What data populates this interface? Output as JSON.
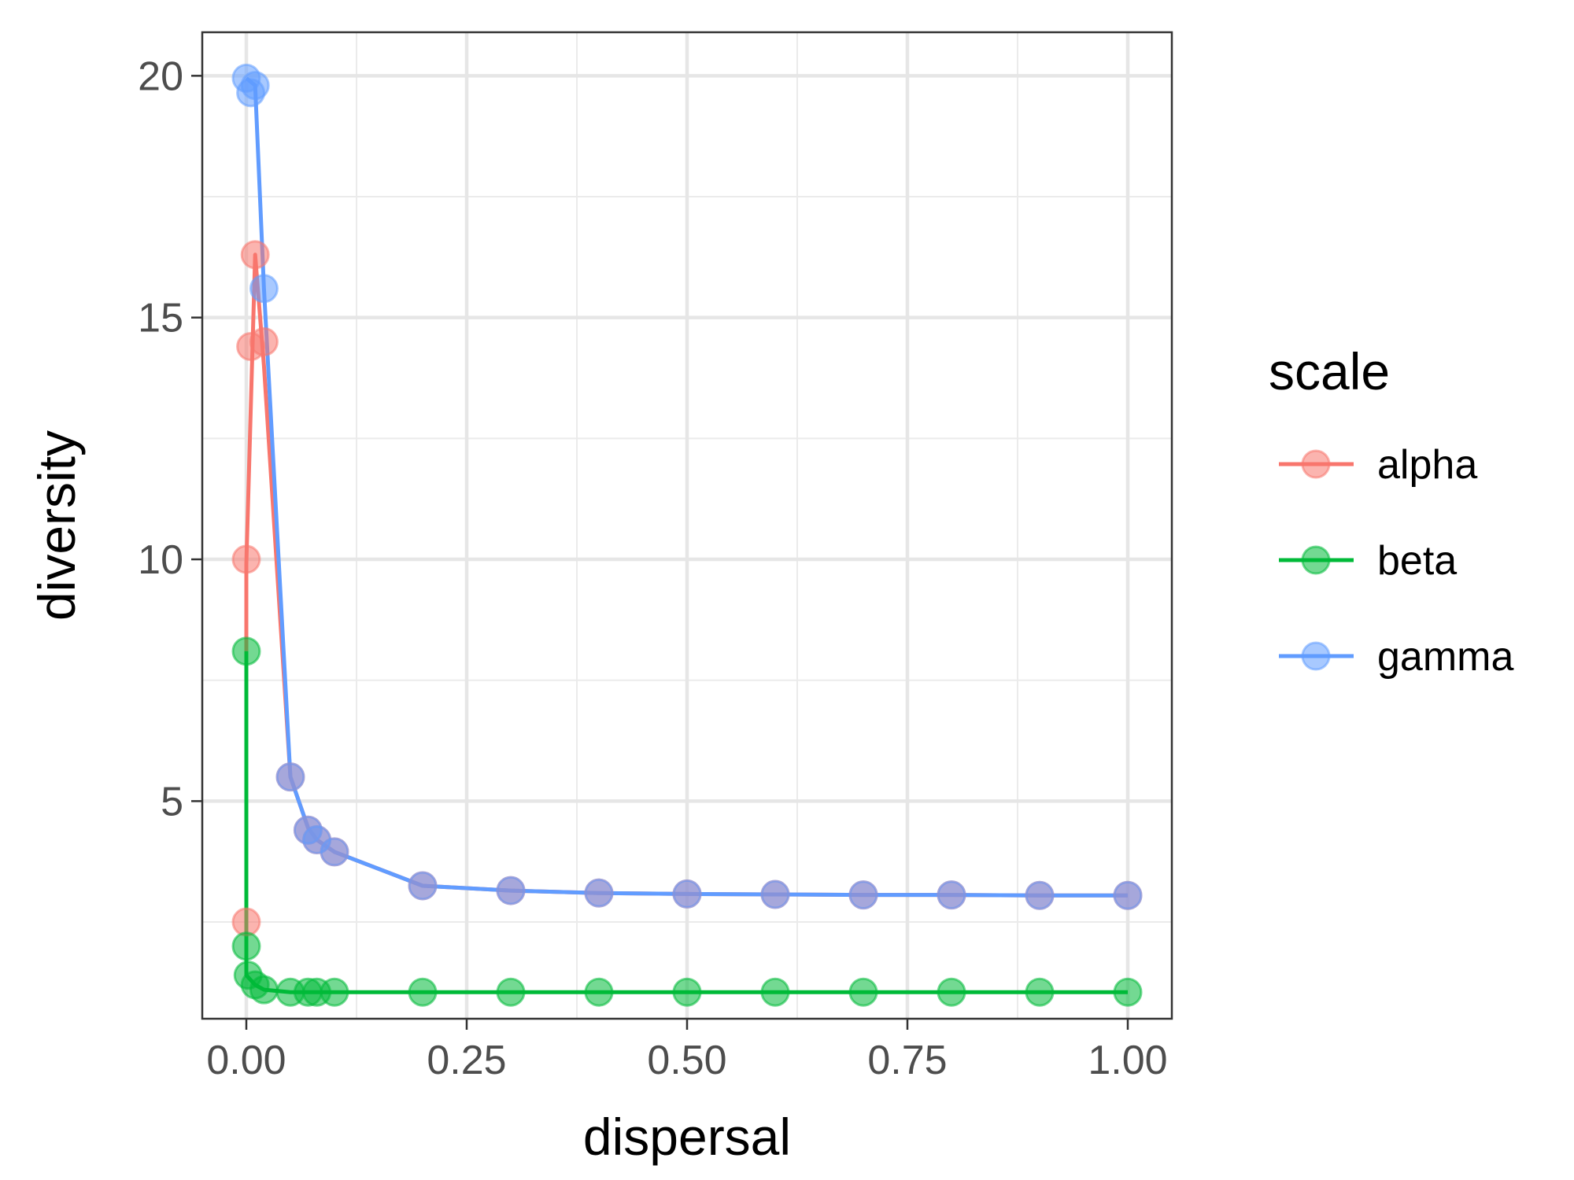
{
  "chart_data": {
    "type": "line",
    "xlabel": "dispersal",
    "ylabel": "diversity",
    "xlim": [
      -0.05,
      1.05
    ],
    "ylim": [
      0.5,
      20.9
    ],
    "x_ticks": [
      0.0,
      0.25,
      0.5,
      0.75,
      1.0
    ],
    "x_tick_labels": [
      "0.00",
      "0.25",
      "0.50",
      "0.75",
      "1.00"
    ],
    "y_ticks": [
      5,
      10,
      15,
      20
    ],
    "y_tick_labels": [
      "5",
      "10",
      "15",
      "20"
    ],
    "grid": true,
    "legend": {
      "title": "scale",
      "position": "right"
    },
    "series": [
      {
        "name": "alpha",
        "color": "#F8766D",
        "points": [
          [
            0.0,
            2.5
          ],
          [
            0.0,
            10.0
          ],
          [
            0.005,
            14.4
          ],
          [
            0.01,
            16.3
          ],
          [
            0.02,
            14.5
          ],
          [
            0.05,
            5.5
          ],
          [
            0.07,
            4.4
          ],
          [
            0.08,
            4.2
          ],
          [
            0.1,
            3.95
          ],
          [
            0.2,
            3.25
          ],
          [
            0.3,
            3.15
          ],
          [
            0.4,
            3.1
          ],
          [
            0.5,
            3.08
          ],
          [
            0.6,
            3.07
          ],
          [
            0.7,
            3.06
          ],
          [
            0.8,
            3.06
          ],
          [
            0.9,
            3.05
          ],
          [
            1.0,
            3.05
          ]
        ],
        "line": [
          [
            0.0,
            8.1
          ],
          [
            0.0,
            9.9
          ],
          [
            0.01,
            16.3
          ],
          [
            0.02,
            14.0
          ],
          [
            0.05,
            5.5
          ],
          [
            0.07,
            4.45
          ],
          [
            0.08,
            4.2
          ],
          [
            0.1,
            3.95
          ],
          [
            0.2,
            3.25
          ],
          [
            0.3,
            3.15
          ],
          [
            0.4,
            3.1
          ],
          [
            0.5,
            3.08
          ],
          [
            0.6,
            3.07
          ],
          [
            0.7,
            3.06
          ],
          [
            0.8,
            3.06
          ],
          [
            0.9,
            3.05
          ],
          [
            1.0,
            3.05
          ]
        ]
      },
      {
        "name": "beta",
        "color": "#00BA38",
        "points": [
          [
            0.0,
            8.1
          ],
          [
            0.0,
            2.0
          ],
          [
            0.002,
            1.4
          ],
          [
            0.01,
            1.2
          ],
          [
            0.02,
            1.1
          ],
          [
            0.05,
            1.05
          ],
          [
            0.07,
            1.05
          ],
          [
            0.08,
            1.05
          ],
          [
            0.1,
            1.05
          ],
          [
            0.2,
            1.05
          ],
          [
            0.3,
            1.05
          ],
          [
            0.4,
            1.05
          ],
          [
            0.5,
            1.05
          ],
          [
            0.6,
            1.05
          ],
          [
            0.7,
            1.05
          ],
          [
            0.8,
            1.05
          ],
          [
            0.9,
            1.05
          ],
          [
            1.0,
            1.05
          ]
        ],
        "line": [
          [
            0.0,
            8.1
          ],
          [
            0.0,
            1.4
          ],
          [
            0.01,
            1.2
          ],
          [
            0.02,
            1.1
          ],
          [
            0.05,
            1.05
          ],
          [
            0.1,
            1.05
          ],
          [
            0.2,
            1.05
          ],
          [
            0.3,
            1.05
          ],
          [
            0.4,
            1.05
          ],
          [
            0.5,
            1.05
          ],
          [
            0.6,
            1.05
          ],
          [
            0.7,
            1.05
          ],
          [
            0.8,
            1.05
          ],
          [
            0.9,
            1.05
          ],
          [
            1.0,
            1.05
          ]
        ]
      },
      {
        "name": "gamma",
        "color": "#619CFF",
        "points": [
          [
            0.0,
            19.95
          ],
          [
            0.005,
            19.65
          ],
          [
            0.01,
            19.8
          ],
          [
            0.02,
            15.6
          ],
          [
            0.05,
            5.5
          ],
          [
            0.07,
            4.4
          ],
          [
            0.08,
            4.2
          ],
          [
            0.1,
            3.95
          ],
          [
            0.2,
            3.25
          ],
          [
            0.3,
            3.15
          ],
          [
            0.4,
            3.1
          ],
          [
            0.5,
            3.08
          ],
          [
            0.6,
            3.07
          ],
          [
            0.7,
            3.06
          ],
          [
            0.8,
            3.06
          ],
          [
            0.9,
            3.05
          ],
          [
            1.0,
            3.05
          ]
        ],
        "line": [
          [
            0.0,
            19.95
          ],
          [
            0.01,
            19.8
          ],
          [
            0.02,
            15.6
          ],
          [
            0.05,
            5.5
          ],
          [
            0.07,
            4.45
          ],
          [
            0.08,
            4.2
          ],
          [
            0.1,
            3.95
          ],
          [
            0.2,
            3.25
          ],
          [
            0.3,
            3.15
          ],
          [
            0.4,
            3.1
          ],
          [
            0.5,
            3.08
          ],
          [
            0.6,
            3.07
          ],
          [
            0.7,
            3.06
          ],
          [
            0.8,
            3.06
          ],
          [
            0.9,
            3.05
          ],
          [
            1.0,
            3.05
          ]
        ]
      }
    ]
  }
}
